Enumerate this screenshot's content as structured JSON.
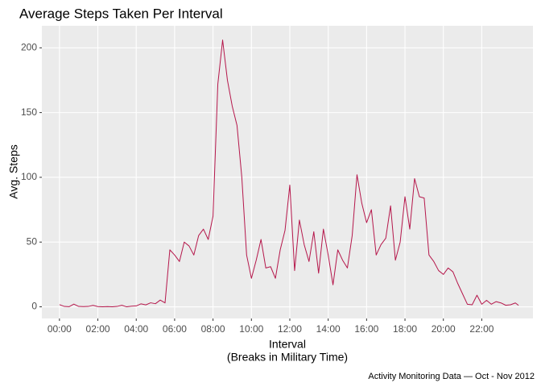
{
  "chart_data": {
    "type": "line",
    "title": "Average Steps Taken Per Interval",
    "xlabel": [
      "Interval",
      "(Breaks in Military Time)"
    ],
    "ylabel": "Avg. Steps",
    "caption": "Activity Monitoring Data — Oct - Nov 2012",
    "color": "#b5174b",
    "grid": true,
    "x": [
      0,
      15,
      30,
      45,
      60,
      75,
      90,
      105,
      120,
      135,
      150,
      165,
      180,
      195,
      210,
      225,
      240,
      255,
      270,
      285,
      300,
      315,
      330,
      345,
      360,
      375,
      390,
      405,
      420,
      435,
      450,
      465,
      480,
      495,
      510,
      525,
      540,
      555,
      570,
      585,
      600,
      615,
      630,
      645,
      660,
      675,
      690,
      705,
      720,
      735,
      750,
      765,
      780,
      795,
      810,
      825,
      840,
      855,
      870,
      885,
      900,
      915,
      930,
      945,
      960,
      975,
      990,
      1005,
      1020,
      1035,
      1050,
      1065,
      1080,
      1095,
      1110,
      1125,
      1140,
      1155,
      1170,
      1185,
      1200,
      1215,
      1230,
      1245,
      1260,
      1275,
      1290,
      1305,
      1320,
      1335,
      1350,
      1365,
      1380,
      1395,
      1410,
      1425,
      1435
    ],
    "values": [
      1.7,
      0.3,
      0.1,
      2.1,
      0.3,
      0.2,
      0.3,
      1.1,
      0.2,
      0,
      0.2,
      0,
      0.3,
      1.2,
      0,
      0.5,
      0.7,
      2.3,
      1.5,
      3.1,
      2.4,
      5.2,
      3,
      44,
      40,
      35,
      50,
      47,
      40,
      55,
      60,
      52,
      70,
      172,
      206,
      175,
      155,
      140,
      100,
      40,
      22,
      36,
      52,
      30,
      31,
      22,
      44,
      59,
      94,
      28,
      67,
      48,
      35,
      58,
      26,
      60,
      40,
      17,
      44,
      36,
      30,
      55,
      102,
      80,
      65,
      75,
      40,
      48,
      53,
      78,
      36,
      50,
      85,
      60,
      99,
      85,
      84,
      40,
      35,
      28,
      25,
      30,
      27,
      18,
      10,
      2,
      1.6,
      9,
      2,
      5,
      2,
      4,
      3,
      1.2,
      1.6,
      3,
      1.1
    ],
    "xlim": [
      -55,
      1480
    ],
    "ylim": [
      -9,
      217
    ],
    "xticks": [
      {
        "value": 0,
        "label": "00:00"
      },
      {
        "value": 120,
        "label": "02:00"
      },
      {
        "value": 240,
        "label": "04:00"
      },
      {
        "value": 360,
        "label": "06:00"
      },
      {
        "value": 480,
        "label": "08:00"
      },
      {
        "value": 600,
        "label": "10:00"
      },
      {
        "value": 720,
        "label": "12:00"
      },
      {
        "value": 840,
        "label": "14:00"
      },
      {
        "value": 960,
        "label": "16:00"
      },
      {
        "value": 1080,
        "label": "18:00"
      },
      {
        "value": 1200,
        "label": "20:00"
      },
      {
        "value": 1320,
        "label": "22:00"
      }
    ],
    "yticks": [
      0,
      50,
      100,
      150,
      200
    ]
  }
}
